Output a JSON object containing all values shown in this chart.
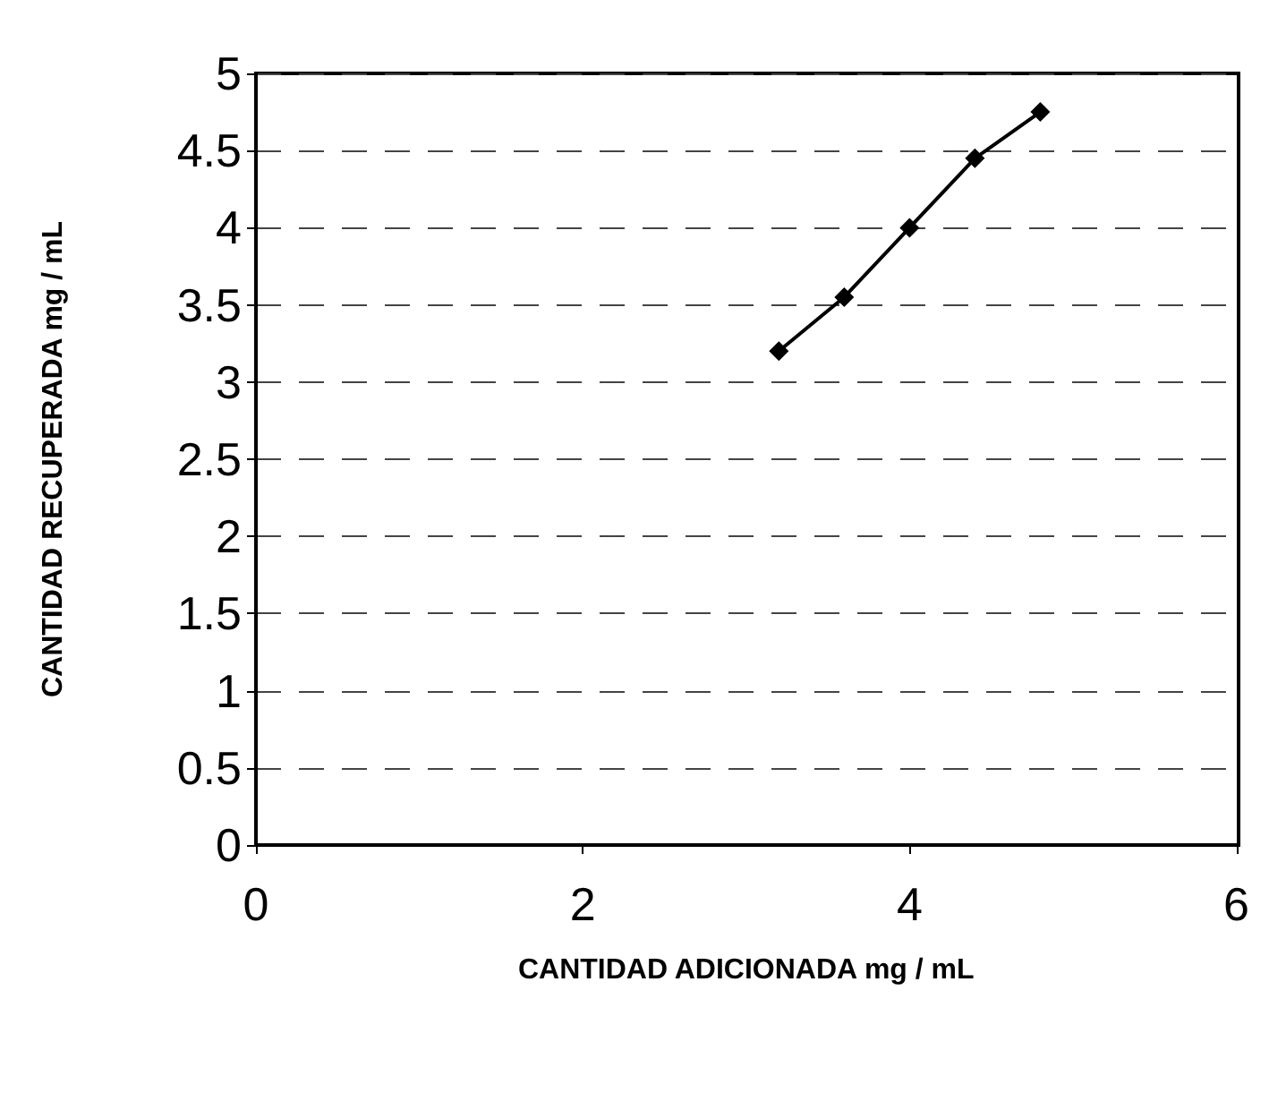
{
  "chart_data": {
    "type": "line",
    "xlabel": "CANTIDAD ADICIONADA mg / mL",
    "ylabel": "CANTIDAD RECUPERADA mg / mL",
    "x": [
      3.2,
      3.6,
      4.0,
      4.4,
      4.8
    ],
    "series": [
      {
        "color": "#000000",
        "values": [
          3.2,
          3.55,
          4.0,
          4.45,
          4.75
        ]
      }
    ],
    "xlim": [
      0,
      6
    ],
    "xticks": [
      0,
      2,
      4,
      6
    ],
    "ylim": [
      0,
      5
    ],
    "yticks": [
      0,
      0.5,
      1,
      1.5,
      2,
      2.5,
      3,
      3.5,
      4,
      4.5,
      5
    ],
    "grid": "y",
    "marker": "diamond",
    "line_style": "solid"
  }
}
